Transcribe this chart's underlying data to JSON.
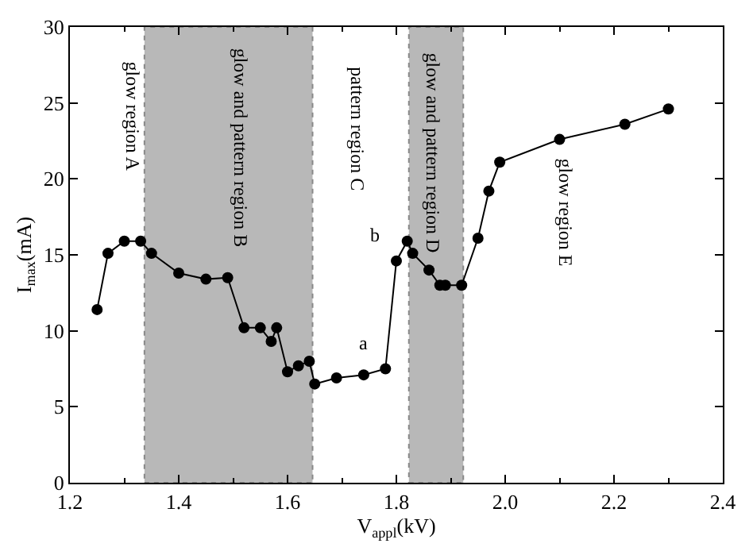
{
  "chart_data": {
    "type": "line",
    "xlabel": "V$_{appl}$(kV)",
    "ylabel": "I$_{max}$(mA)",
    "x": [
      1.25,
      1.27,
      1.3,
      1.33,
      1.35,
      1.4,
      1.45,
      1.49,
      1.52,
      1.55,
      1.57,
      1.58,
      1.6,
      1.62,
      1.64,
      1.65,
      1.69,
      1.74,
      1.78,
      1.8,
      1.82,
      1.83,
      1.86,
      1.88,
      1.89,
      1.92,
      1.95,
      1.97,
      1.99,
      2.1,
      2.22,
      2.3
    ],
    "series": [
      {
        "color": "#000000",
        "values": [
          11.4,
          15.1,
          15.9,
          15.9,
          15.1,
          13.8,
          13.4,
          13.5,
          10.2,
          10.2,
          9.3,
          10.2,
          7.3,
          7.7,
          8.0,
          6.5,
          6.9,
          7.1,
          7.5,
          14.6,
          15.9,
          15.1,
          14.0,
          13.0,
          13.0,
          13.0,
          16.1,
          19.2,
          21.1,
          22.6,
          23.6,
          24.6
        ]
      }
    ],
    "xlim": [
      1.2,
      2.4
    ],
    "xticks": [
      1.2,
      1.4,
      1.6,
      1.8,
      {
        "value": 2.0,
        "label": "2.0"
      },
      2.2,
      2.4
    ],
    "ylim": [
      0,
      30
    ],
    "yticks": [
      0,
      5,
      10,
      15,
      20,
      25,
      30
    ],
    "marker": "circle",
    "line_style": "solid",
    "grid": false,
    "bands": [
      {
        "axis": "x",
        "from": 1.337,
        "to": 1.646,
        "color": "#b8b8b8"
      },
      {
        "axis": "x",
        "from": 1.823,
        "to": 1.923,
        "color": "#b8b8b8"
      }
    ],
    "annotations": [
      "glow region A",
      "glow and pattern region B",
      "pattern region C",
      "glow and pattern region D",
      "glow region E",
      {
        "text": "a",
        "x": 1.78,
        "y": 7.5
      },
      {
        "text": "b",
        "x": 1.8,
        "y": 14.6
      }
    ]
  }
}
